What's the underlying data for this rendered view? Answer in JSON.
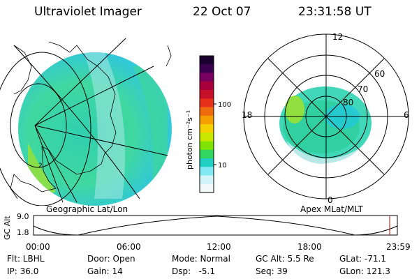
{
  "header": {
    "instrument": "Ultraviolet Imager",
    "date": "22 Oct 07",
    "time": "23:31:58 UT"
  },
  "geo_panel": {
    "label": "Geographic Lat/Lon"
  },
  "apex_panel": {
    "label": "Apex MLat/MLT",
    "mlt_labels": [
      "12",
      "18",
      "6",
      "0"
    ],
    "mlat_labels": [
      "60",
      "70",
      "80"
    ]
  },
  "colorbar": {
    "axis_label": "photon cm⁻²s⁻¹",
    "ticks": [
      "100",
      "10"
    ],
    "colors": [
      "#1a0030",
      "#3a0050",
      "#7a0060",
      "#a8003a",
      "#c8102a",
      "#e8301a",
      "#f06a10",
      "#f5a000",
      "#f5d000",
      "#c8e800",
      "#80e400",
      "#30d860",
      "#20d0c0",
      "#80e8f0",
      "#d0f4f8",
      "#f0f8fa"
    ]
  },
  "alt_plot": {
    "axis_title": "GC Alt",
    "y_ticks": [
      "9.0",
      "1.8"
    ],
    "x_ticks": [
      "00:00",
      "06:00",
      "12:00",
      "18:00",
      "23:59"
    ]
  },
  "info": {
    "row1": [
      "Flt: LBHL",
      "Door: Open",
      "Mode: Normal",
      "GC Alt: 5.5 Re",
      "GLat: -71.1"
    ],
    "row2": [
      "IP: 36.0",
      "Gain: 14",
      "Dsp:   -5.1",
      "Seq: 39",
      "GLon: 121.3"
    ]
  }
}
